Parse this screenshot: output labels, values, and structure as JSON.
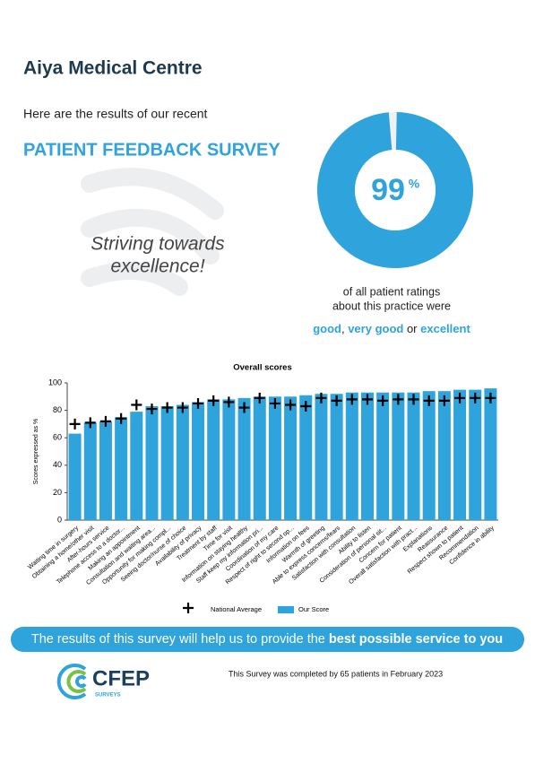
{
  "header": {
    "title": "Aiya Medical Centre",
    "intro": "Here are the results of our recent",
    "subtitle": "PATIENT FEEDBACK SURVEY"
  },
  "slogan": [
    "Striving towards",
    "excellence!"
  ],
  "donut": {
    "value": 99,
    "unit": "%",
    "color": "#2ea3dc"
  },
  "rating_text": [
    "of all patient ratings",
    "about this practice were"
  ],
  "rating_terms": [
    "good",
    ", ",
    "very good",
    " or ",
    "excellent"
  ],
  "chart_data": {
    "type": "bar",
    "title": "Overall scores",
    "y_label": "Scores expressed as %",
    "categories": [
      "Waiting time in surgery",
      "Obtaining a home/other visit",
      "After-hours service",
      "Telephone access to a doctor...",
      "Making an appointment",
      "Consultation and waiting area...",
      "Opportunity for making compl...",
      "Seeing doctor/nurse of choice",
      "Availability of privacy",
      "Treatment by staff",
      "Time for visit",
      "Information on staying healthy",
      "Staff keep my information pri...",
      "Coordination of my care",
      "Respect of right to second op...",
      "Information on fees",
      "Warmth of greeting",
      "Able to express concerns/fears",
      "Satisfaction with consultation",
      "Ability to listen",
      "Consideration of personal sit...",
      "Concern for patient",
      "Overall satisfaction with pract...",
      "Explanations",
      "Reassurance",
      "Respect shown to patient",
      "Recommendation",
      "Confidence in ability"
    ],
    "series": [
      {
        "name": "Our Score",
        "color": "#2ea3dc",
        "values": [
          63,
          71,
          72,
          75,
          79,
          83,
          83,
          84,
          86,
          88,
          88,
          89,
          90,
          90,
          90,
          91,
          92,
          92,
          93,
          93,
          93,
          93,
          93,
          94,
          94,
          95,
          95,
          96
        ]
      },
      {
        "name": "National Average",
        "color": "#000000",
        "marker": "plus",
        "values": [
          70,
          71,
          72,
          74,
          84,
          81,
          82,
          82,
          85,
          87,
          86,
          82,
          89,
          85,
          84,
          83,
          89,
          87,
          88,
          88,
          87,
          88,
          88,
          87,
          87,
          89,
          89,
          89
        ]
      }
    ],
    "ylim": [
      0,
      100
    ],
    "yticks": [
      0,
      20,
      40,
      60,
      80,
      100
    ],
    "grid": false
  },
  "banner": [
    "The results of this survey will help us to provide the ",
    "best possible service to you"
  ],
  "footer": {
    "logo": "CFEP",
    "logo_sub": "SURVEYS",
    "note": "This Survey was completed by 65 patients in February 2023"
  }
}
